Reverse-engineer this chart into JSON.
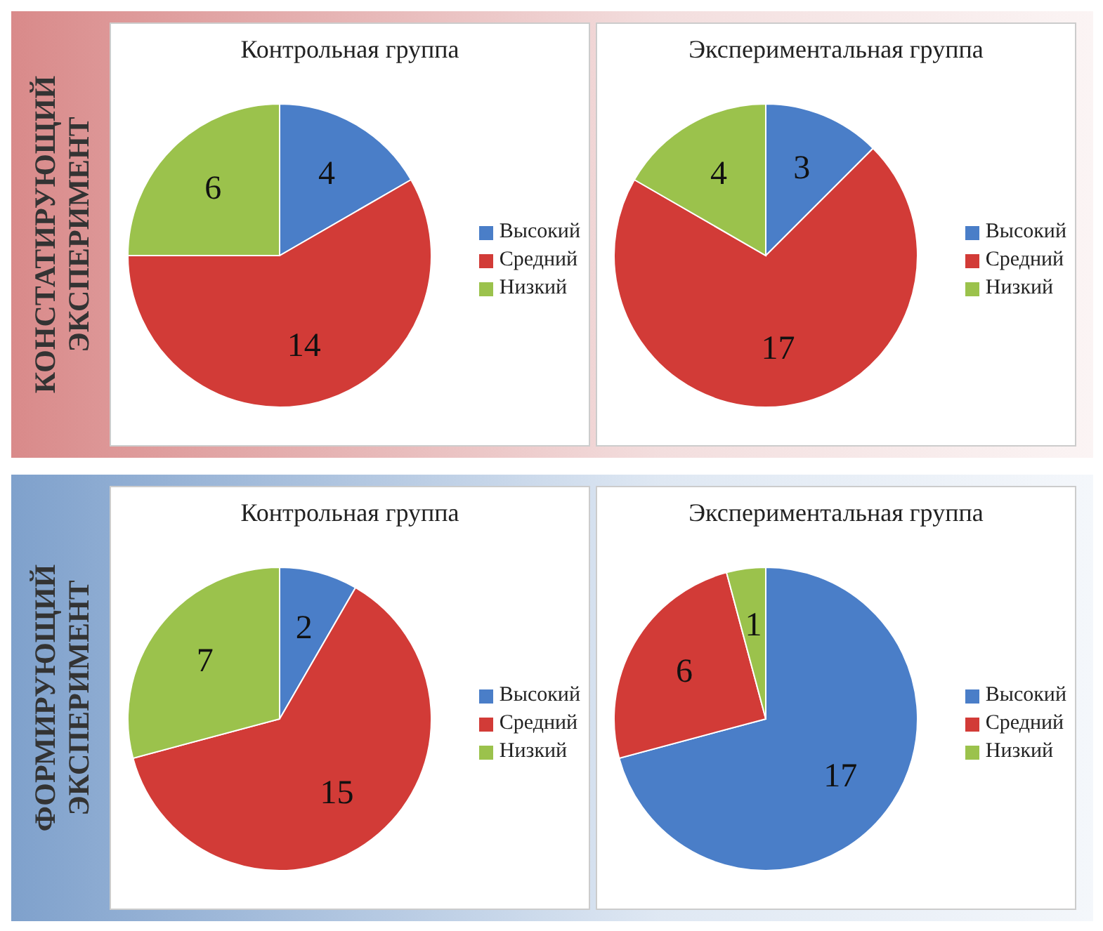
{
  "chart_data": [
    {
      "type": "pie",
      "title": "Контрольная группа",
      "annotations": [
        "КОНСТАТИРУЮЩИЙ ЭКСПЕРИМЕНТ"
      ],
      "categories": [
        "Высокий",
        "Средний",
        "Низкий"
      ],
      "values": [
        4,
        14,
        6
      ],
      "colors": [
        "#4a7ec8",
        "#d23b37",
        "#9bc24c"
      ],
      "data_labels": true,
      "legend": "right"
    },
    {
      "type": "pie",
      "title": "Экспериментальная группа",
      "categories": [
        "Высокий",
        "Средний",
        "Низкий"
      ],
      "values": [
        3,
        17,
        4
      ],
      "colors": [
        "#4a7ec8",
        "#d23b37",
        "#9bc24c"
      ],
      "data_labels": true,
      "legend": "right"
    },
    {
      "type": "pie",
      "title": "Контрольная группа",
      "annotations": [
        "ФОРМИРУЮЩИЙ ЭКСПЕРИМЕНТ"
      ],
      "categories": [
        "Высокий",
        "Средний",
        "Низкий"
      ],
      "values": [
        2,
        15,
        7
      ],
      "colors": [
        "#4a7ec8",
        "#d23b37",
        "#9bc24c"
      ],
      "data_labels": true,
      "legend": "right"
    },
    {
      "type": "pie",
      "title": "Экспериментальная группа",
      "categories": [
        "Высокий",
        "Средний",
        "Низкий"
      ],
      "values": [
        17,
        6,
        1
      ],
      "colors": [
        "#4a7ec8",
        "#d23b37",
        "#9bc24c"
      ],
      "data_labels": true,
      "legend": "right"
    }
  ]
}
